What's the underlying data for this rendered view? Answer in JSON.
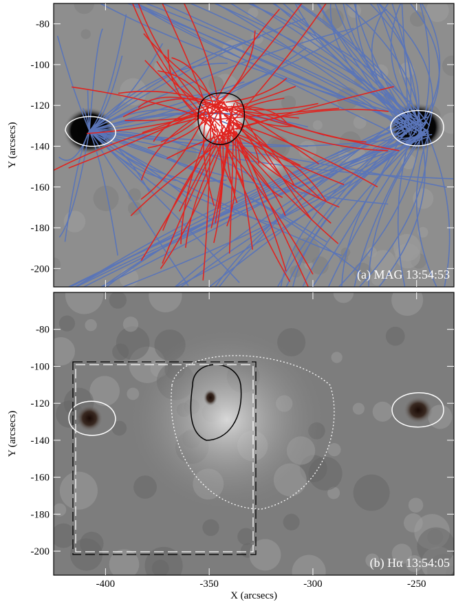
{
  "chart_data": [
    {
      "type": "image",
      "label": "(a) MAG 13:54:53",
      "ylabel": "Y (arcsecs)",
      "xlim": [
        -425,
        -232
      ],
      "ylim": [
        -209,
        -70
      ],
      "xticks": [
        -400,
        -350,
        -300,
        -250
      ],
      "yticks": [
        -80,
        -100,
        -120,
        -140,
        -160,
        -180,
        -200
      ]
    },
    {
      "type": "image",
      "label": "(b) Hα 13:54:05",
      "ylabel": "Y (arcsecs)",
      "xlabel": "X (arcsecs)",
      "xlim": [
        -425,
        -232
      ],
      "ylim": [
        -213,
        -60
      ],
      "xticks": [
        -400,
        -350,
        -300,
        -250
      ],
      "yticks": [
        -80,
        -100,
        -120,
        -140,
        -160,
        -180,
        -200
      ]
    }
  ]
}
